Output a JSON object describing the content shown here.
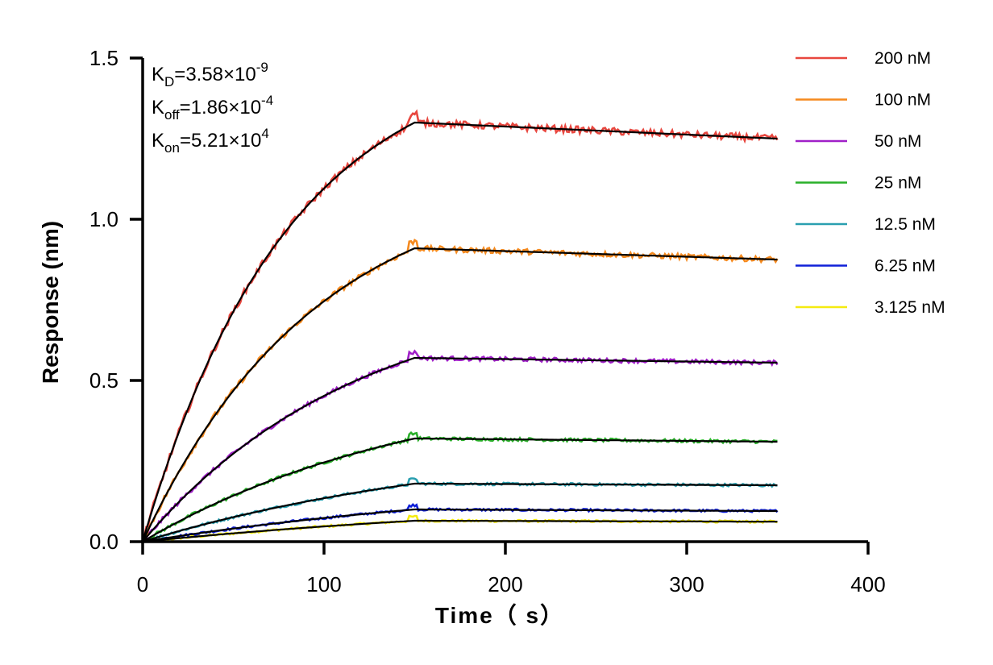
{
  "chart_data": {
    "type": "line",
    "xlabel": "Time（ s）",
    "ylabel": "Response (nm)",
    "xlim": [
      0,
      400
    ],
    "ylim": [
      0,
      1.5
    ],
    "x_ticks": [
      "0",
      "100",
      "200",
      "300",
      "400"
    ],
    "y_ticks": [
      "0.0",
      "0.5",
      "1.0",
      "1.5"
    ],
    "grid": false,
    "legend_position": "top-right",
    "association_end": 150,
    "time_end": 350,
    "kinetics": [
      {
        "main": "K",
        "sub": "D",
        "rest": "=3.58×10",
        "exp": "-9"
      },
      {
        "main": "K",
        "sub": "off",
        "rest": "=1.86×10",
        "exp": "-4"
      },
      {
        "main": "K",
        "sub": "on",
        "rest": "=5.21×10",
        "exp": "4"
      }
    ],
    "fit_color": "#000000",
    "series": [
      {
        "name": "200 nM",
        "color": "#e8473f",
        "plateau": 1.3,
        "end": 1.25
      },
      {
        "name": "100 nM",
        "color": "#f58a1f",
        "plateau": 0.91,
        "end": 0.875
      },
      {
        "name": "50 nM",
        "color": "#a020c8",
        "plateau": 0.57,
        "end": 0.555
      },
      {
        "name": "25 nM",
        "color": "#2ab02a",
        "plateau": 0.32,
        "end": 0.31
      },
      {
        "name": "12.5 nM",
        "color": "#2a9fb0",
        "plateau": 0.18,
        "end": 0.175
      },
      {
        "name": "6.25 nM",
        "color": "#1020d8",
        "plateau": 0.1,
        "end": 0.095
      },
      {
        "name": "3.125 nM",
        "color": "#f5eb10",
        "plateau": 0.065,
        "end": 0.062
      }
    ]
  }
}
